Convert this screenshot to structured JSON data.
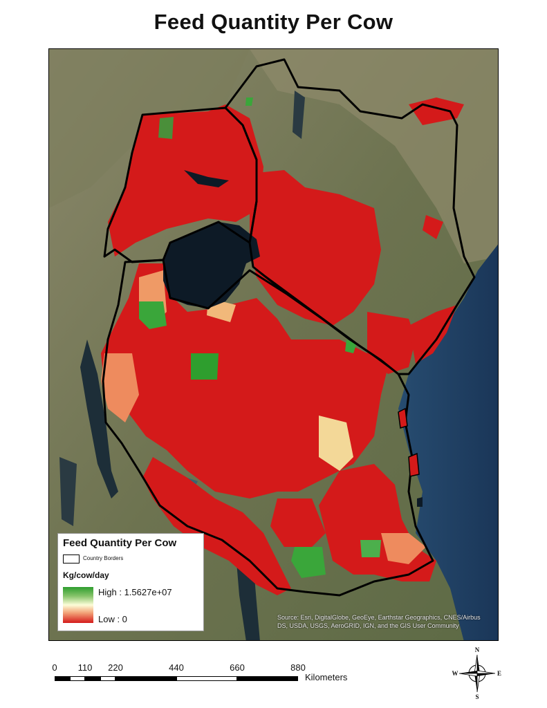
{
  "title": "Feed Quantity Per Cow",
  "attribution": "Source: Esri, DigitalGlobe, GeoEye, Earthstar Geographics, CNES/Airbus DS, USDA, USGS, AeroGRID, IGN, and the GIS User Community",
  "legend": {
    "title": "Feed Quantity Per Cow",
    "border_label": "Country Borders",
    "units": "Kg/cow/day",
    "high_label": "High : 1.5627e+07",
    "low_label": "Low : 0",
    "high_value": 15627000,
    "low_value": 0,
    "ramp_colors": [
      "#2e9e2e",
      "#86c36a",
      "#fdfdd8",
      "#f2a277",
      "#d41a1a"
    ]
  },
  "scale_bar": {
    "ticks": [
      "0",
      "110",
      "220",
      "440",
      "660",
      "880"
    ],
    "tick_values": [
      0,
      110,
      220,
      440,
      660,
      880
    ],
    "unit": "Kilometers"
  },
  "north_arrow": {
    "n": "N",
    "s": "S",
    "e": "E",
    "w": "W"
  },
  "colors": {
    "feed_low": "#d41a1a",
    "feed_high": "#2e9e2e",
    "water_lake": "#0d1a26",
    "ocean": "#1c3c63",
    "land": "#6f7552"
  }
}
